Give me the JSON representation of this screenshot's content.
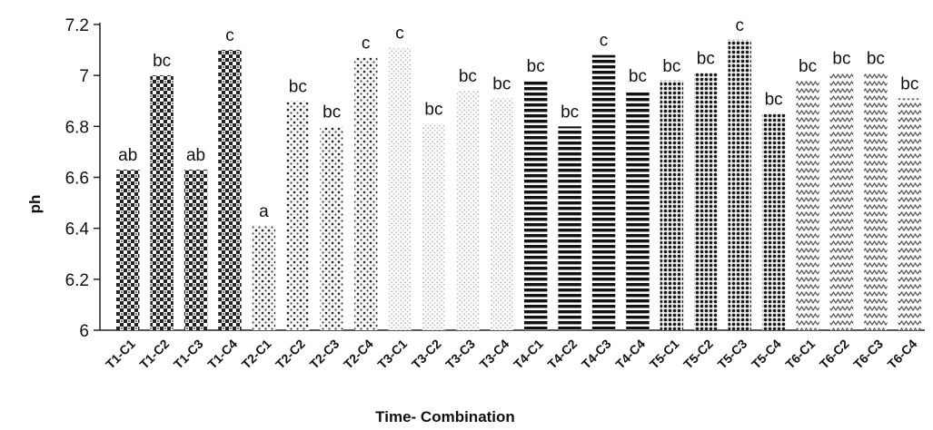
{
  "chart_data": {
    "type": "bar",
    "xlabel": "Time- Combination",
    "ylabel": "ph",
    "ylim": [
      6,
      7.2
    ],
    "yticks": [
      "6",
      "6.2",
      "6.4",
      "6.6",
      "6.8",
      "7",
      "7.2"
    ],
    "grid": false,
    "legend": "none",
    "categories": [
      "T1-C1",
      "T1-C2",
      "T1-C3",
      "T1-C4",
      "T2-C1",
      "T2-C2",
      "T2-C3",
      "T2-C4",
      "T3-C1",
      "T3-C2",
      "T3-C3",
      "T3-C4",
      "T4-C1",
      "T4-C2",
      "T4-C3",
      "T4-C4",
      "T5-C1",
      "T5-C2",
      "T5-C3",
      "T5-C4",
      "T6-C1",
      "T6-C2",
      "T6-C3",
      "T6-C4"
    ],
    "values": [
      6.63,
      7.0,
      6.63,
      7.1,
      6.41,
      6.9,
      6.8,
      7.07,
      7.11,
      6.81,
      6.94,
      6.91,
      6.98,
      6.8,
      7.08,
      6.94,
      6.98,
      7.01,
      7.14,
      6.85,
      6.98,
      7.01,
      7.01,
      6.91
    ],
    "labels": [
      "ab",
      "bc",
      "ab",
      "c",
      "a",
      "bc",
      "bc",
      "c",
      "c",
      "bc",
      "bc",
      "bc",
      "bc",
      "bc",
      "c",
      "bc",
      "bc",
      "bc",
      "c",
      "bc",
      "bc",
      "bc",
      "bc",
      "bc"
    ],
    "group_patterns": [
      "checker",
      "dots",
      "fine-stipple",
      "horizontal-stripes",
      "dense-dots",
      "zigzag"
    ]
  }
}
